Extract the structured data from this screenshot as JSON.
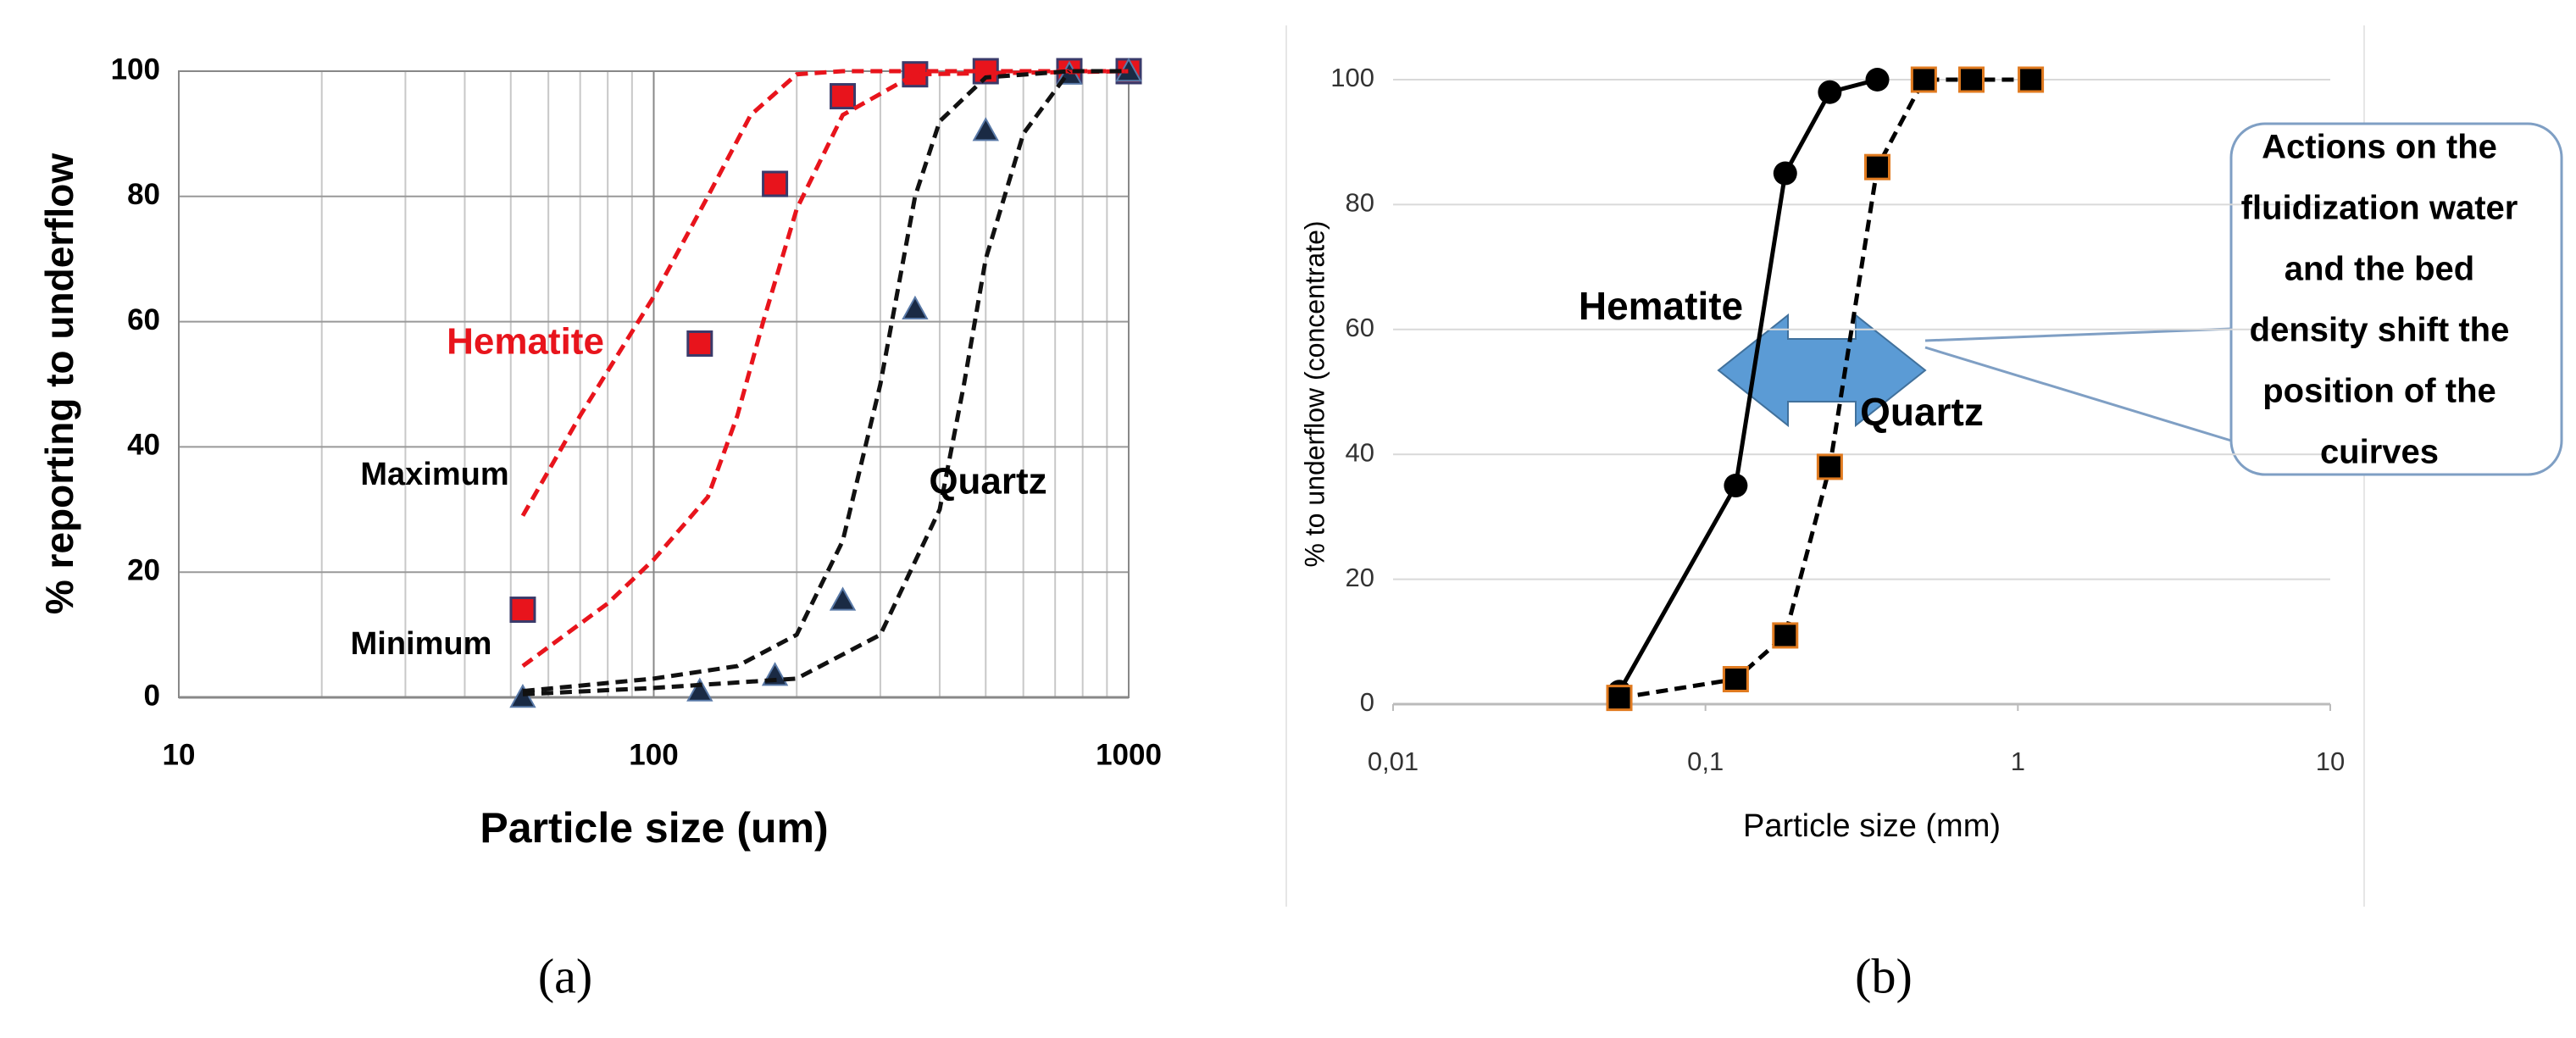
{
  "chart_data": [
    {
      "type": "scatter",
      "panel": "(a)",
      "xlabel": "Particle size (um)",
      "ylabel": "% reporting to underflow",
      "xscale": "log",
      "xlim": [
        10,
        1000
      ],
      "xticks": [
        10,
        100,
        1000
      ],
      "ylim": [
        0,
        100
      ],
      "yticks": [
        0,
        20,
        40,
        60,
        80,
        100
      ],
      "grid": "both",
      "annotations": [
        "Hematite",
        "Maximum",
        "Minimum",
        "Quartz"
      ],
      "series": [
        {
          "color": "#e8141c",
          "marker": "square",
          "x": [
            53,
            125,
            180,
            250,
            355,
            500,
            750,
            1000
          ],
          "values": [
            14,
            56.5,
            82,
            96,
            99.5,
            100,
            100,
            100
          ]
        },
        {
          "color": "#1a2a44",
          "marker": "triangle",
          "x": [
            53,
            125,
            180,
            250,
            355,
            500,
            750,
            1000
          ],
          "values": [
            0,
            1,
            3.5,
            15.5,
            62,
            90.5,
            99.5,
            100
          ]
        },
        {
          "color": "#e8141c",
          "line": "dashed",
          "x": [
            53,
            70,
            100,
            130,
            160,
            200,
            250,
            1000
          ],
          "values": [
            29,
            45,
            64,
            80,
            93,
            99.5,
            100,
            100
          ]
        },
        {
          "color": "#e8141c",
          "line": "dashed",
          "x": [
            53,
            80,
            100,
            130,
            150,
            170,
            200,
            250,
            355,
            1000
          ],
          "values": [
            5,
            15,
            22,
            32,
            45,
            60,
            78,
            93,
            99.5,
            100
          ]
        },
        {
          "color": "#111111",
          "line": "dashed",
          "x": [
            53,
            100,
            150,
            200,
            250,
            300,
            355,
            400,
            500,
            750,
            1000
          ],
          "values": [
            1,
            3,
            5,
            10,
            25,
            50,
            80,
            92,
            99,
            100,
            100
          ]
        },
        {
          "color": "#111111",
          "line": "dashed",
          "x": [
            53,
            100,
            200,
            300,
            400,
            450,
            500,
            600,
            750
          ],
          "values": [
            0.5,
            1.5,
            3,
            10,
            30,
            50,
            70,
            90,
            100
          ]
        }
      ]
    },
    {
      "type": "line",
      "panel": "(b)",
      "xlabel": "Particle size (mm)",
      "ylabel": "% to underflow (concentrate)",
      "xscale": "log",
      "xlim": [
        0.01,
        10
      ],
      "xticks": [
        {
          "value": 0.01,
          "label": "0,01"
        },
        {
          "value": 0.1,
          "label": "0,1"
        },
        1,
        10
      ],
      "ylim": [
        0,
        100
      ],
      "yticks": [
        0,
        20,
        40,
        60,
        80,
        100
      ],
      "grid": "y",
      "annotations": [
        "Hematite",
        "Quartz"
      ],
      "callout": [
        "Actions on the",
        "fluidization water",
        "and the bed",
        "density shift the",
        "position of the",
        "cuirves"
      ],
      "series": [
        {
          "color": "#000000",
          "marker": "circle",
          "line": "solid",
          "x": [
            0.053,
            0.125,
            0.18,
            0.25,
            0.355
          ],
          "values": [
            2,
            35,
            85,
            98,
            100
          ]
        },
        {
          "color": "#000000",
          "edge": "#e07a1f",
          "marker": "square",
          "line": "dashed",
          "x": [
            0.053,
            0.125,
            0.18,
            0.25,
            0.355,
            0.5,
            0.71,
            1.1
          ],
          "values": [
            1,
            4,
            11,
            38,
            86,
            100,
            100,
            100
          ]
        }
      ]
    }
  ]
}
